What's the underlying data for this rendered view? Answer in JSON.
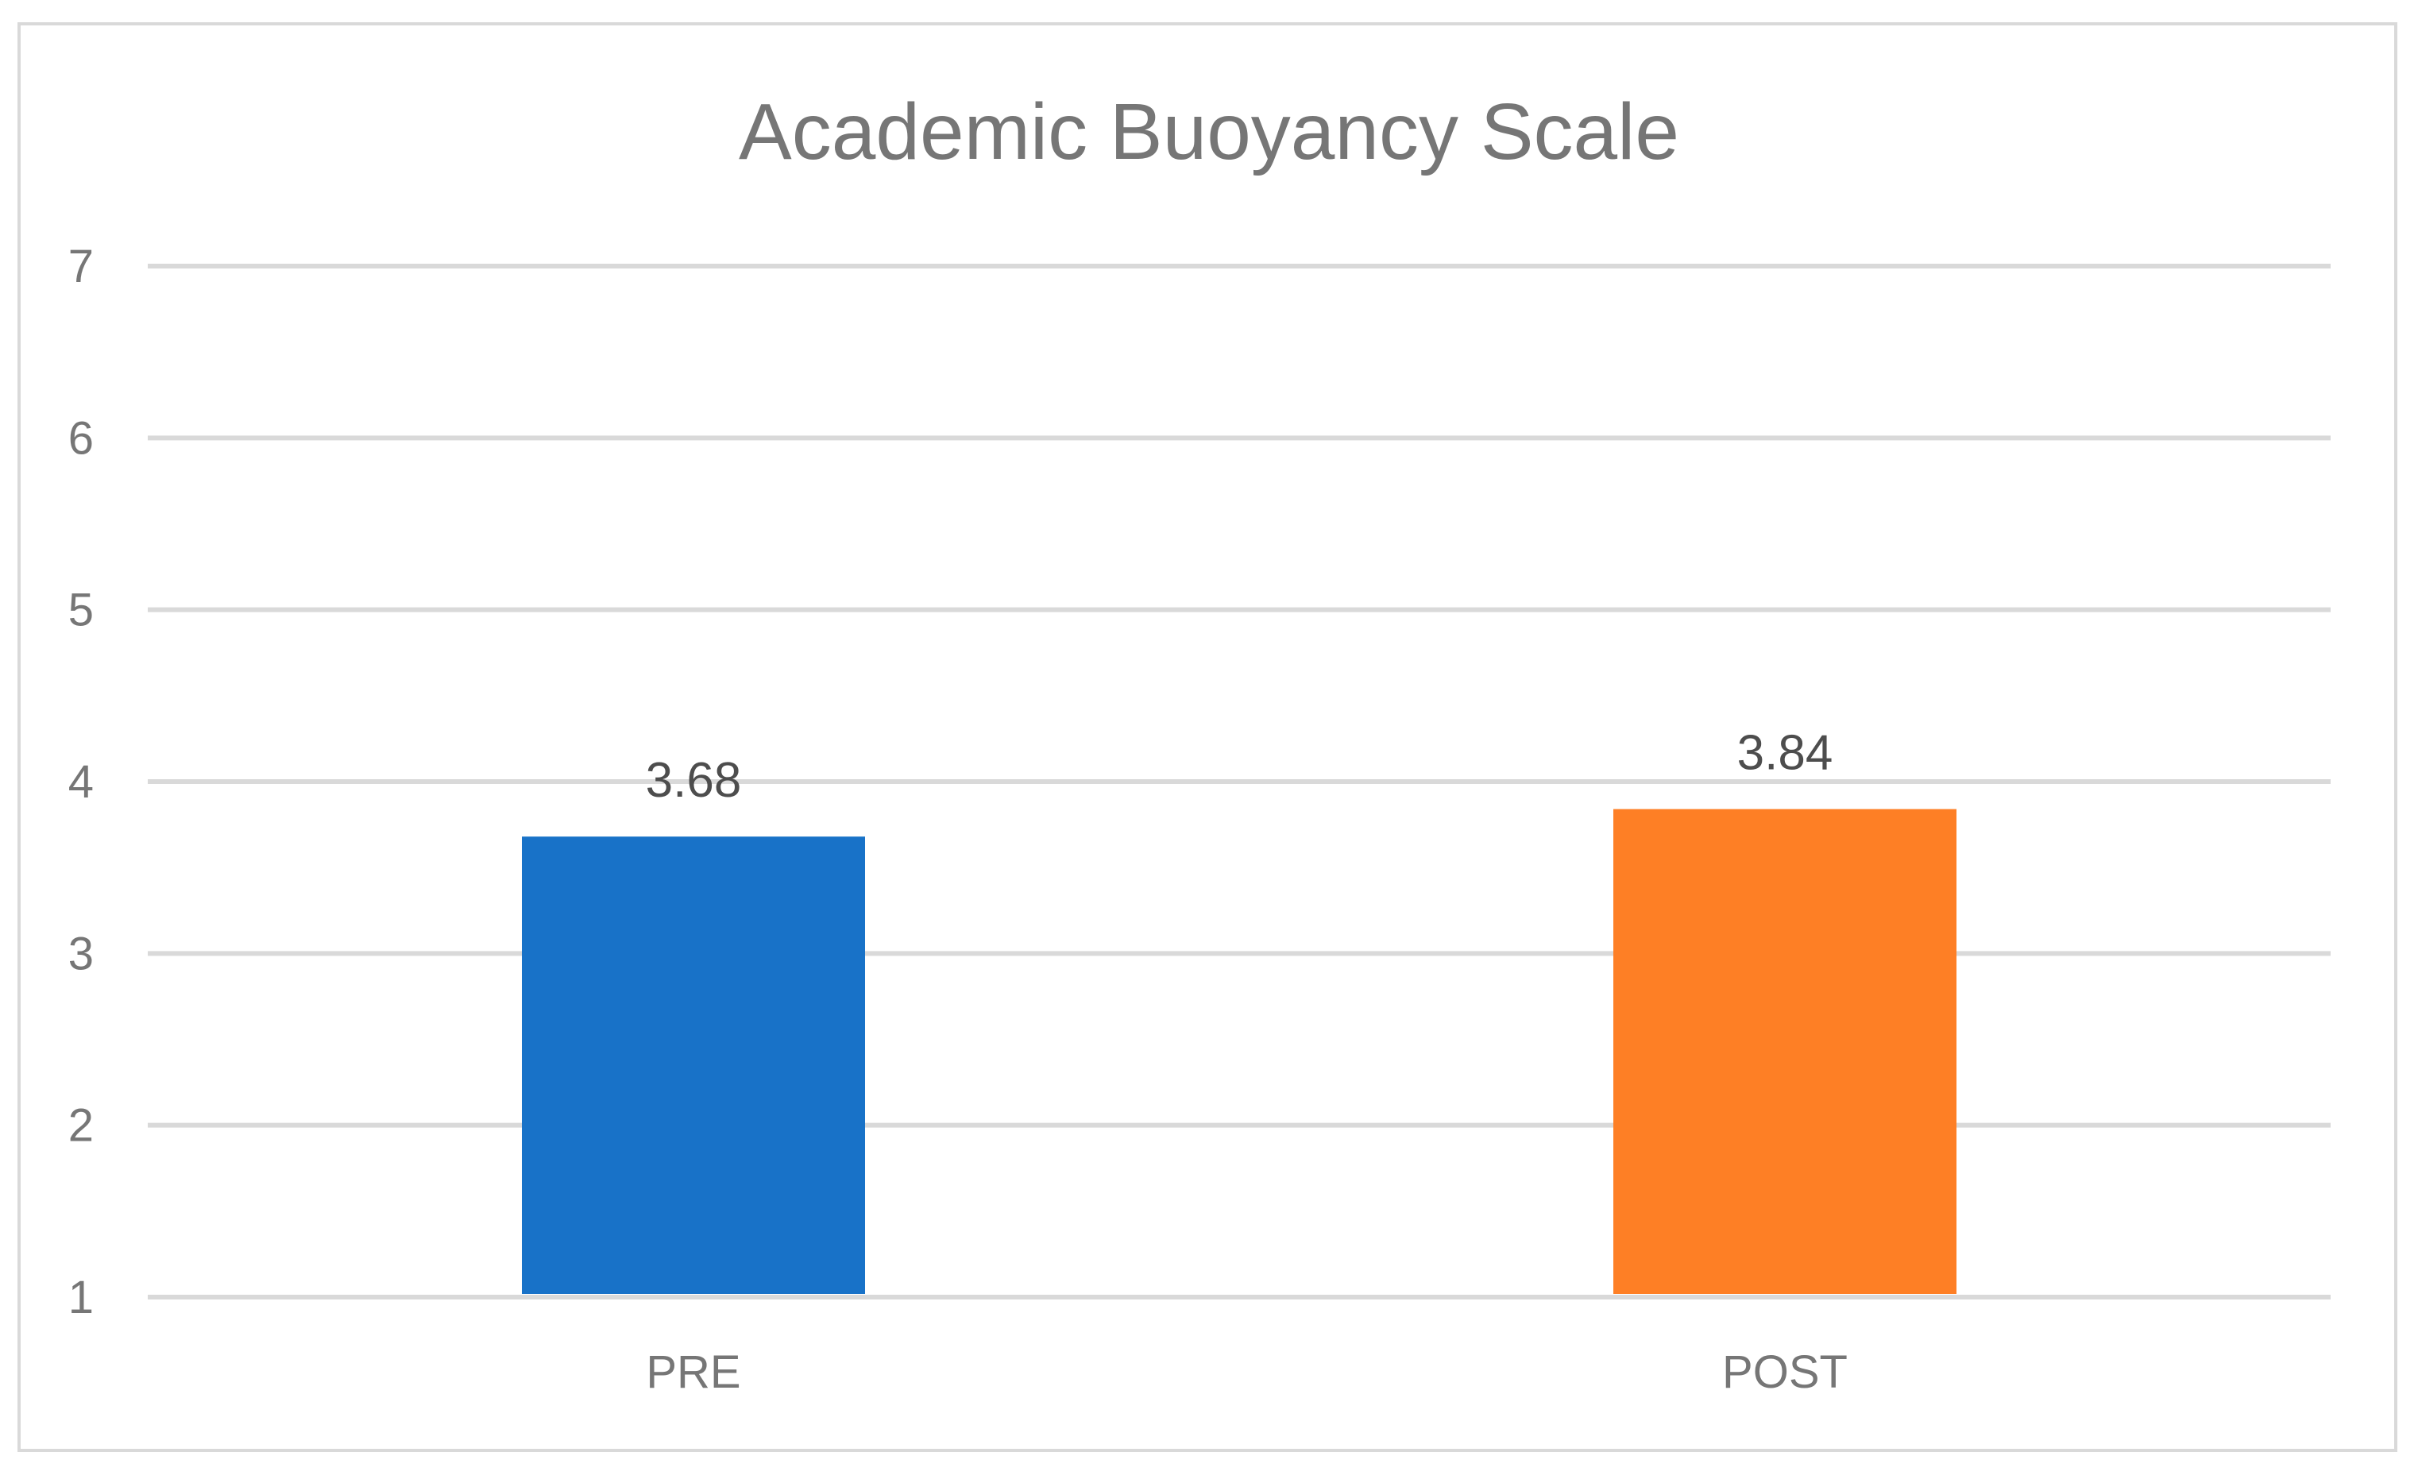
{
  "chart_data": {
    "type": "bar",
    "title": "Academic Buoyancy Scale",
    "xlabel": "",
    "ylabel": "",
    "categories": [
      "PRE",
      "POST"
    ],
    "values": [
      3.68,
      3.84
    ],
    "data_labels": [
      "3.68",
      "3.84"
    ],
    "colors": [
      "#1872c8",
      "#fe7f25"
    ],
    "ylim": [
      1,
      7
    ],
    "yticks": [
      1,
      2,
      3,
      4,
      5,
      6,
      7
    ],
    "grid": true,
    "legend": "none"
  },
  "colors": {
    "grid": "#d9d9d9",
    "text": "#767676",
    "data_label": "#4d4d4d",
    "border": "#d9d9d9"
  }
}
